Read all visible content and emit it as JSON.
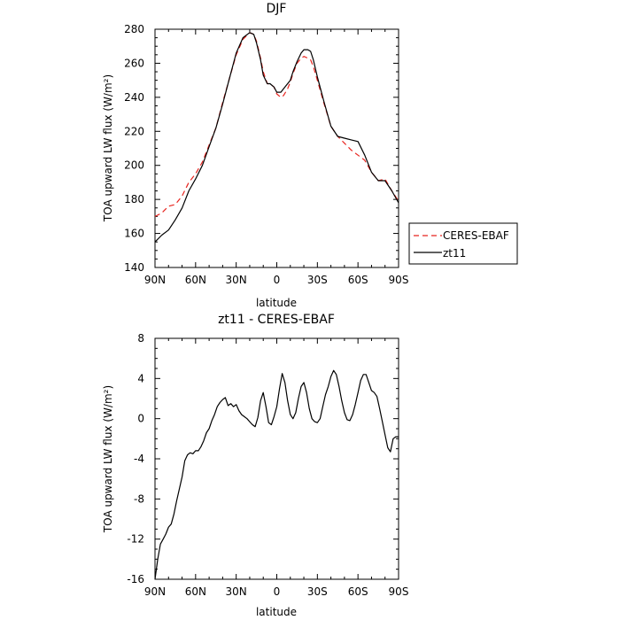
{
  "chart_data": [
    {
      "type": "line",
      "title": "DJF",
      "xlabel": "latitude",
      "ylabel": "TOA upward LW flux (W/m²)",
      "x_ticks": [
        -90,
        -60,
        -30,
        0,
        30,
        60,
        90
      ],
      "x_tick_labels": [
        "90N",
        "60N",
        "30N",
        "0",
        "30S",
        "60S",
        "90S"
      ],
      "y_ticks": [
        140,
        160,
        180,
        200,
        220,
        240,
        260,
        280
      ],
      "y_tick_labels": [
        "140",
        "160",
        "180",
        "200",
        "220",
        "240",
        "260",
        "280"
      ],
      "xlim": [
        -90,
        90
      ],
      "ylim": [
        140,
        280
      ],
      "grid": false,
      "legend": "outside-right",
      "series": [
        {
          "name": "CERES-EBAF",
          "color": "#e8251f",
          "dash": "dashed",
          "x": [
            -90,
            -85,
            -80,
            -75,
            -70,
            -65,
            -60,
            -55,
            -50,
            -45,
            -40,
            -35,
            -30,
            -25,
            -20,
            -17,
            -15,
            -12,
            -10,
            -7,
            -5,
            -2,
            0,
            3,
            5,
            8,
            10,
            12,
            15,
            18,
            20,
            23,
            25,
            27,
            30,
            35,
            40,
            45,
            50,
            55,
            60,
            65,
            70,
            75,
            80,
            85,
            90
          ],
          "y": [
            170,
            172,
            176,
            177,
            182,
            190,
            195,
            202,
            212,
            222,
            237,
            251,
            265,
            274,
            278,
            277,
            273,
            263,
            255,
            248,
            248,
            246,
            242,
            240,
            241,
            245,
            249,
            254,
            260,
            263,
            264,
            263,
            262,
            258,
            250,
            236,
            223,
            217,
            213,
            209,
            206,
            203,
            196,
            191,
            192,
            185,
            179
          ]
        },
        {
          "name": "zt11",
          "color": "#000000",
          "dash": "solid",
          "x": [
            -90,
            -85,
            -80,
            -75,
            -70,
            -65,
            -60,
            -55,
            -50,
            -45,
            -40,
            -35,
            -30,
            -25,
            -20,
            -17,
            -15,
            -12,
            -10,
            -7,
            -5,
            -2,
            0,
            3,
            5,
            8,
            10,
            12,
            15,
            18,
            20,
            23,
            25,
            27,
            30,
            35,
            40,
            45,
            50,
            55,
            60,
            65,
            70,
            75,
            80,
            85,
            90
          ],
          "y": [
            155,
            159,
            162,
            168,
            175,
            185,
            192,
            200,
            211,
            222,
            236,
            251,
            266,
            275,
            278,
            277,
            272,
            262,
            253,
            248,
            248,
            246,
            243,
            243,
            245,
            248,
            250,
            255,
            261,
            266,
            268,
            268,
            267,
            262,
            252,
            237,
            223,
            217,
            216,
            215,
            214,
            206,
            196,
            191,
            191,
            185,
            178
          ]
        }
      ]
    },
    {
      "type": "line",
      "title": "zt11 - CERES-EBAF",
      "xlabel": "latitude",
      "ylabel": "TOA upward LW flux (W/m²)",
      "x_ticks": [
        -90,
        -60,
        -30,
        0,
        30,
        60,
        90
      ],
      "x_tick_labels": [
        "90N",
        "60N",
        "30N",
        "0",
        "30S",
        "60S",
        "90S"
      ],
      "y_ticks": [
        -16,
        -12,
        -8,
        -4,
        0,
        4,
        8
      ],
      "y_tick_labels": [
        "-16",
        "-12",
        "-8",
        "-4",
        "0",
        "4",
        "8"
      ],
      "xlim": [
        -90,
        90
      ],
      "ylim": [
        -16,
        8
      ],
      "grid": false,
      "legend": "none",
      "series": [
        {
          "color": "#000000",
          "dash": "solid",
          "x": [
            -90,
            -88,
            -86,
            -84,
            -82,
            -80,
            -78,
            -76,
            -74,
            -72,
            -70,
            -68,
            -66,
            -64,
            -62,
            -60,
            -58,
            -56,
            -54,
            -52,
            -50,
            -48,
            -46,
            -44,
            -42,
            -40,
            -38,
            -36,
            -34,
            -32,
            -30,
            -28,
            -26,
            -24,
            -22,
            -20,
            -18,
            -16,
            -14,
            -12,
            -10,
            -8,
            -6,
            -4,
            -2,
            0,
            2,
            4,
            6,
            8,
            10,
            12,
            14,
            16,
            18,
            20,
            22,
            24,
            26,
            28,
            30,
            32,
            34,
            36,
            38,
            40,
            42,
            44,
            46,
            48,
            50,
            52,
            54,
            56,
            58,
            60,
            62,
            64,
            66,
            68,
            70,
            72,
            74,
            76,
            78,
            80,
            82,
            84,
            86,
            88,
            90
          ],
          "y": [
            -16,
            -14,
            -12.5,
            -12,
            -11.5,
            -10.8,
            -10.5,
            -9.5,
            -8.2,
            -7,
            -5.8,
            -4.2,
            -3.6,
            -3.4,
            -3.5,
            -3.2,
            -3.2,
            -2.8,
            -2.2,
            -1.4,
            -1.0,
            -0.2,
            0.4,
            1.2,
            1.6,
            1.9,
            2.1,
            1.3,
            1.5,
            1.2,
            1.4,
            0.8,
            0.4,
            0.2,
            0,
            -0.3,
            -0.6,
            -0.8,
            0.1,
            1.8,
            2.6,
            1.2,
            -0.4,
            -0.6,
            0.2,
            1.2,
            3.0,
            4.5,
            3.6,
            1.8,
            0.4,
            0,
            0.6,
            2.0,
            3.2,
            3.6,
            2.6,
            1.0,
            0,
            -0.3,
            -0.4,
            0,
            1.2,
            2.4,
            3.2,
            4.2,
            4.8,
            4.4,
            3.2,
            1.8,
            0.6,
            -0.1,
            -0.2,
            0.4,
            1.4,
            2.6,
            3.8,
            4.4,
            4.4,
            3.6,
            2.8,
            2.6,
            2.2,
            1.0,
            -0.3,
            -1.6,
            -2.9,
            -3.3,
            -2.0,
            -1.8,
            -1.8
          ]
        }
      ]
    }
  ]
}
